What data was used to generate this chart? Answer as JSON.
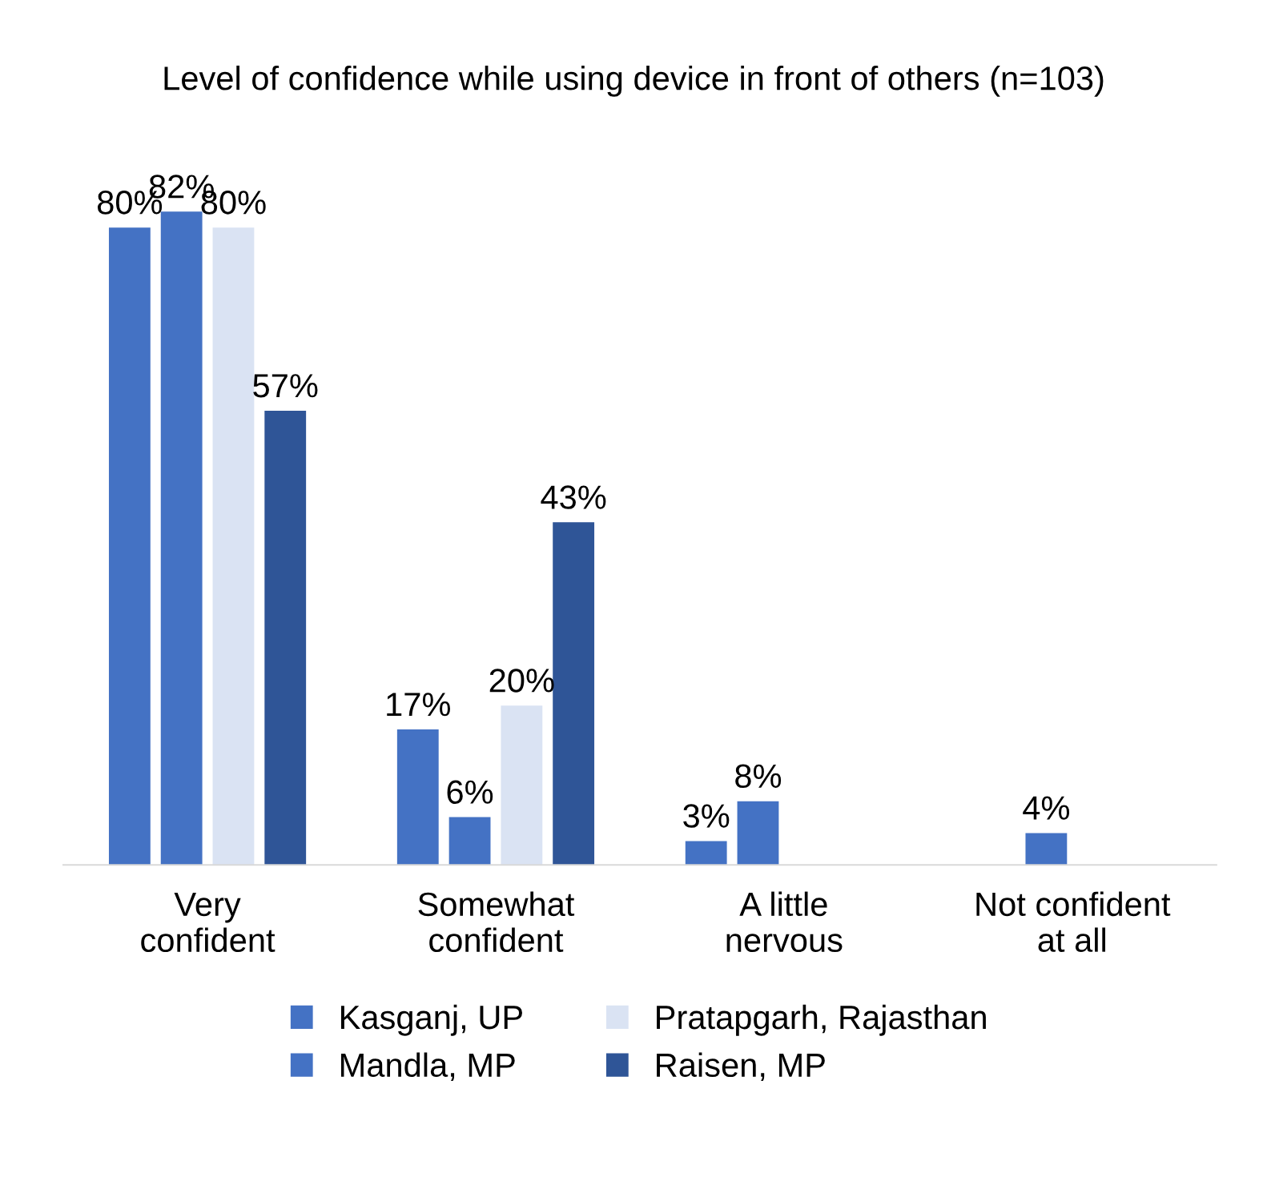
{
  "chart_data": {
    "type": "bar",
    "title": "Level of confidence while using device in front of others (n=103)",
    "categories": [
      "Very confident",
      "Somewhat confident",
      "A little nervous",
      "Not confident at all"
    ],
    "series": [
      {
        "name": "Kasganj, UP",
        "color": "#4472c4",
        "values": [
          80,
          17,
          3,
          null
        ],
        "value_labels": [
          "80%",
          "17%",
          "3%",
          null
        ]
      },
      {
        "name": "Mandla, MP",
        "color": "#4472c4",
        "values": [
          82,
          6,
          8,
          4
        ],
        "value_labels": [
          "82%",
          "6%",
          "8%",
          "4%"
        ]
      },
      {
        "name": "Pratapgarh, Rajasthan",
        "color": "#dae3f3",
        "values": [
          80,
          20,
          null,
          null
        ],
        "value_labels": [
          "80%",
          "20%",
          null,
          null
        ]
      },
      {
        "name": "Raisen, MP",
        "color": "#2f5597",
        "values": [
          57,
          43,
          null,
          null
        ],
        "value_labels": [
          "57%",
          "43%",
          null,
          null
        ]
      }
    ],
    "grid": false,
    "legend": "bottom",
    "tick_labels": "x"
  }
}
